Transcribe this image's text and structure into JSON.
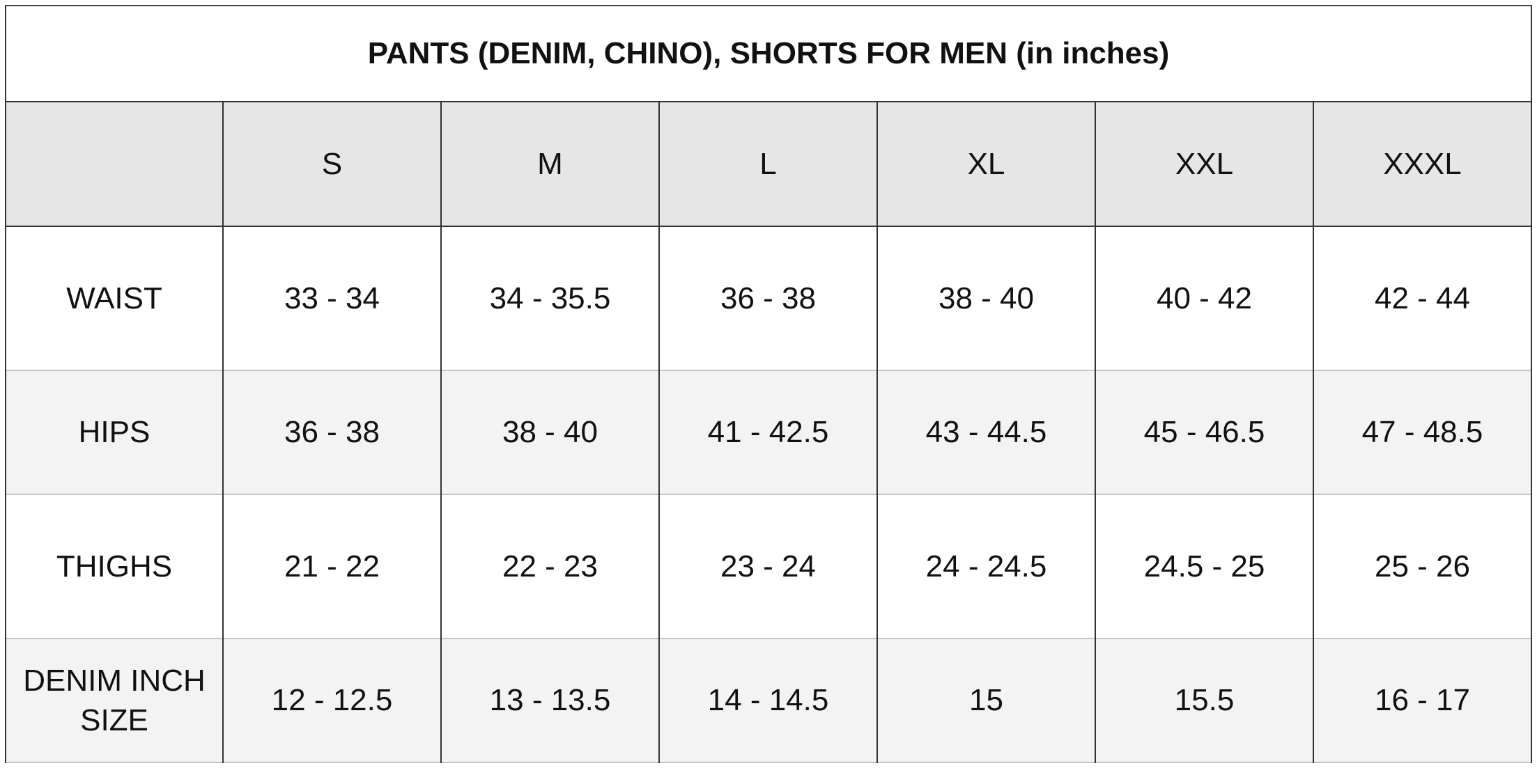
{
  "header": {
    "title": "PANTS (DENIM, CHINO), SHORTS FOR MEN (in inches)"
  },
  "table": {
    "columns": [
      "S",
      "M",
      "L",
      "XL",
      "XXL",
      "XXXL"
    ],
    "rows": [
      {
        "label": "WAIST",
        "values": [
          "33 - 34",
          "34 - 35.5",
          "36 - 38",
          "38 - 40",
          "40 - 42",
          "42 - 44"
        ]
      },
      {
        "label": "HIPS",
        "values": [
          "36 - 38",
          "38 - 40",
          "41 - 42.5",
          "43 - 44.5",
          "45 - 46.5",
          "47 - 48.5"
        ]
      },
      {
        "label": "THIGHS",
        "values": [
          "21 - 22",
          "22 - 23",
          "23 - 24",
          "24 - 24.5",
          "24.5 - 25",
          "25 - 26"
        ]
      },
      {
        "label": "DENIM INCH SIZE",
        "values": [
          "12 - 12.5",
          "13 - 13.5",
          "14 - 14.5",
          "15",
          "15.5",
          "16 - 17"
        ]
      }
    ]
  }
}
